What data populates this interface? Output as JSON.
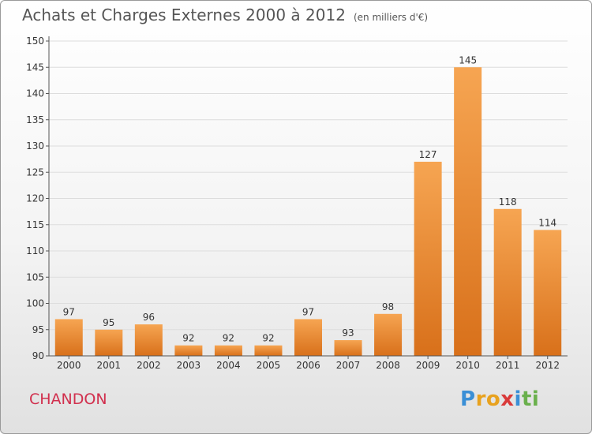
{
  "title": "Achats et Charges Externes 2000 à 2012",
  "subtitle": "(en milliers d'€)",
  "place": "CHANDON",
  "logo_letters": [
    {
      "ch": "P",
      "color": "#3a8fd6"
    },
    {
      "ch": "r",
      "color": "#e8a21f"
    },
    {
      "ch": "o",
      "color": "#e8a21f"
    },
    {
      "ch": "x",
      "color": "#d93a3a"
    },
    {
      "ch": "i",
      "color": "#3a8fd6"
    },
    {
      "ch": "t",
      "color": "#6ab04c"
    },
    {
      "ch": "i",
      "color": "#6ab04c"
    }
  ],
  "colors": {
    "bar_light": "#f6a552",
    "bar_dark": "#d8701a",
    "grid": "#dddddd",
    "axis": "#555555",
    "title": "#555555",
    "place": "#d1304e"
  },
  "chart_data": {
    "type": "bar",
    "categories": [
      "2000",
      "2001",
      "2002",
      "2003",
      "2004",
      "2005",
      "2006",
      "2007",
      "2008",
      "2009",
      "2010",
      "2011",
      "2012"
    ],
    "values": [
      97,
      95,
      96,
      92,
      92,
      92,
      97,
      93,
      98,
      127,
      145,
      118,
      114
    ],
    "data_labels": [
      "97",
      "95",
      "96",
      "92",
      "92",
      "92",
      "97",
      "93",
      "98",
      "127",
      "145",
      "118",
      "114"
    ],
    "ylim": [
      90,
      150
    ],
    "yticks": [
      90,
      95,
      100,
      105,
      110,
      115,
      120,
      125,
      130,
      135,
      140,
      145,
      150
    ],
    "grid": true,
    "xlabel": "",
    "ylabel": ""
  }
}
